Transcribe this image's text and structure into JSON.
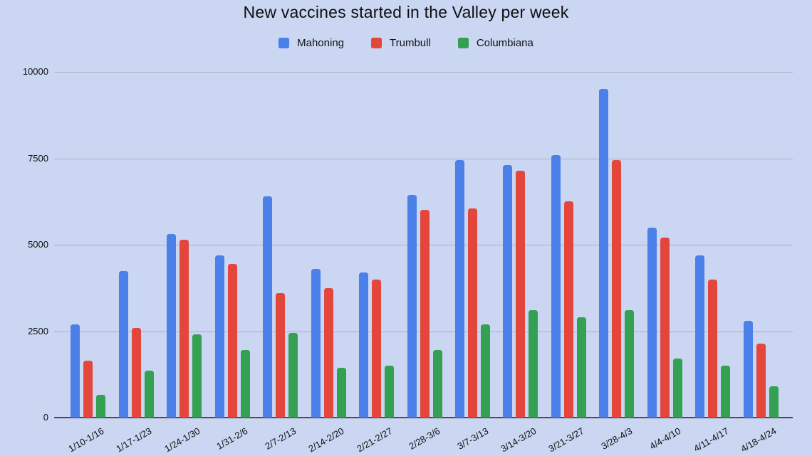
{
  "title": "New vaccines started in the Valley per week",
  "colors": {
    "background": "#CAD6F2",
    "gridline": "#A9B0C2",
    "axis_line": "#4A4C52",
    "text": "#111111",
    "mahoning_blue": "#4A80E8",
    "trumbull_red": "#E5463C",
    "columbiana_green": "#34A052"
  },
  "chart_data": {
    "type": "bar",
    "title": "New vaccines started in the Valley per week",
    "categories": [
      "1/10-1/16",
      "1/17-1/23",
      "1/24-1/30",
      "1/31-2/6",
      "2/7-2/13",
      "2/14-2/20",
      "2/21-2/27",
      "2/28-3/6",
      "3/7-3/13",
      "3/14-3/20",
      "3/21-3/27",
      "3/28-4/3",
      "4/4-4/10",
      "4/11-4/17",
      "4/18-4/24"
    ],
    "series": [
      {
        "name": "Mahoning",
        "color": "#4A80E8",
        "values": [
          2700,
          4250,
          5300,
          4700,
          6400,
          4300,
          4200,
          6450,
          7450,
          7300,
          7600,
          9500,
          5500,
          4700,
          2800
        ]
      },
      {
        "name": "Trumbull",
        "color": "#E5463C",
        "values": [
          1650,
          2600,
          5150,
          4450,
          3600,
          3750,
          4000,
          6000,
          6050,
          7150,
          6250,
          7450,
          5200,
          4000,
          2150
        ]
      },
      {
        "name": "Columbiana",
        "color": "#34A052",
        "values": [
          650,
          1350,
          2400,
          1950,
          2450,
          1450,
          1500,
          1950,
          2700,
          3100,
          2900,
          3100,
          1700,
          1500,
          900
        ]
      }
    ],
    "xlabel": "",
    "ylabel": "",
    "ylim": [
      0,
      10000
    ],
    "yticks": [
      0,
      2500,
      5000,
      7500,
      10000
    ],
    "grid": "horizontal",
    "legend_position": "top",
    "x_label_rotation_deg": -30
  }
}
